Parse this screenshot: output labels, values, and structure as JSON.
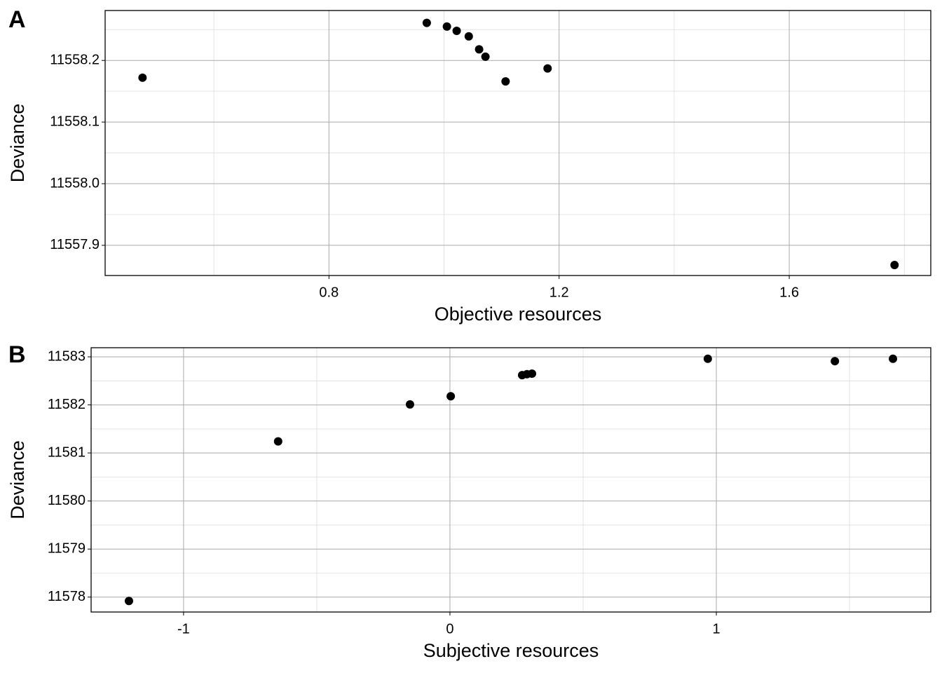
{
  "chart_data": [
    {
      "type": "scatter",
      "panel_label": "A",
      "x_label": "Objective resources",
      "y_label": "Deviance",
      "color": "#000000",
      "grid": true,
      "x": [
        0.476,
        0.97,
        1.005,
        1.022,
        1.043,
        1.061,
        1.072,
        1.107,
        1.18,
        1.783
      ],
      "y": [
        11558.172,
        11558.261,
        11558.255,
        11558.248,
        11558.239,
        11558.218,
        11558.206,
        11558.166,
        11558.187,
        11557.868
      ],
      "xlim": [
        0.411,
        1.846
      ],
      "ylim": [
        11557.851,
        11558.281
      ],
      "xticks": [
        0.8,
        1.2,
        1.6
      ],
      "yticks": [
        11557.9,
        {
          "value": 11558.0,
          "label": "11558.0"
        },
        11558.1,
        11558.2
      ]
    },
    {
      "type": "scatter",
      "panel_label": "B",
      "x_label": "Subjective resources",
      "y_label": "Deviance",
      "color": "#000000",
      "grid": true,
      "x": [
        -1.205,
        -0.645,
        -0.15,
        0.003,
        0.271,
        0.289,
        0.308,
        0.968,
        1.445,
        1.663
      ],
      "y": [
        11577.92,
        11581.24,
        11582.01,
        11582.18,
        11582.62,
        11582.64,
        11582.65,
        11582.96,
        11582.91,
        11582.96
      ],
      "xlim": [
        -1.347,
        1.805
      ],
      "ylim": [
        11577.69,
        11583.19
      ],
      "xticks": [
        -1,
        0,
        1
      ],
      "yticks": [
        11578,
        11579,
        11580,
        11581,
        11582,
        11583
      ]
    }
  ]
}
